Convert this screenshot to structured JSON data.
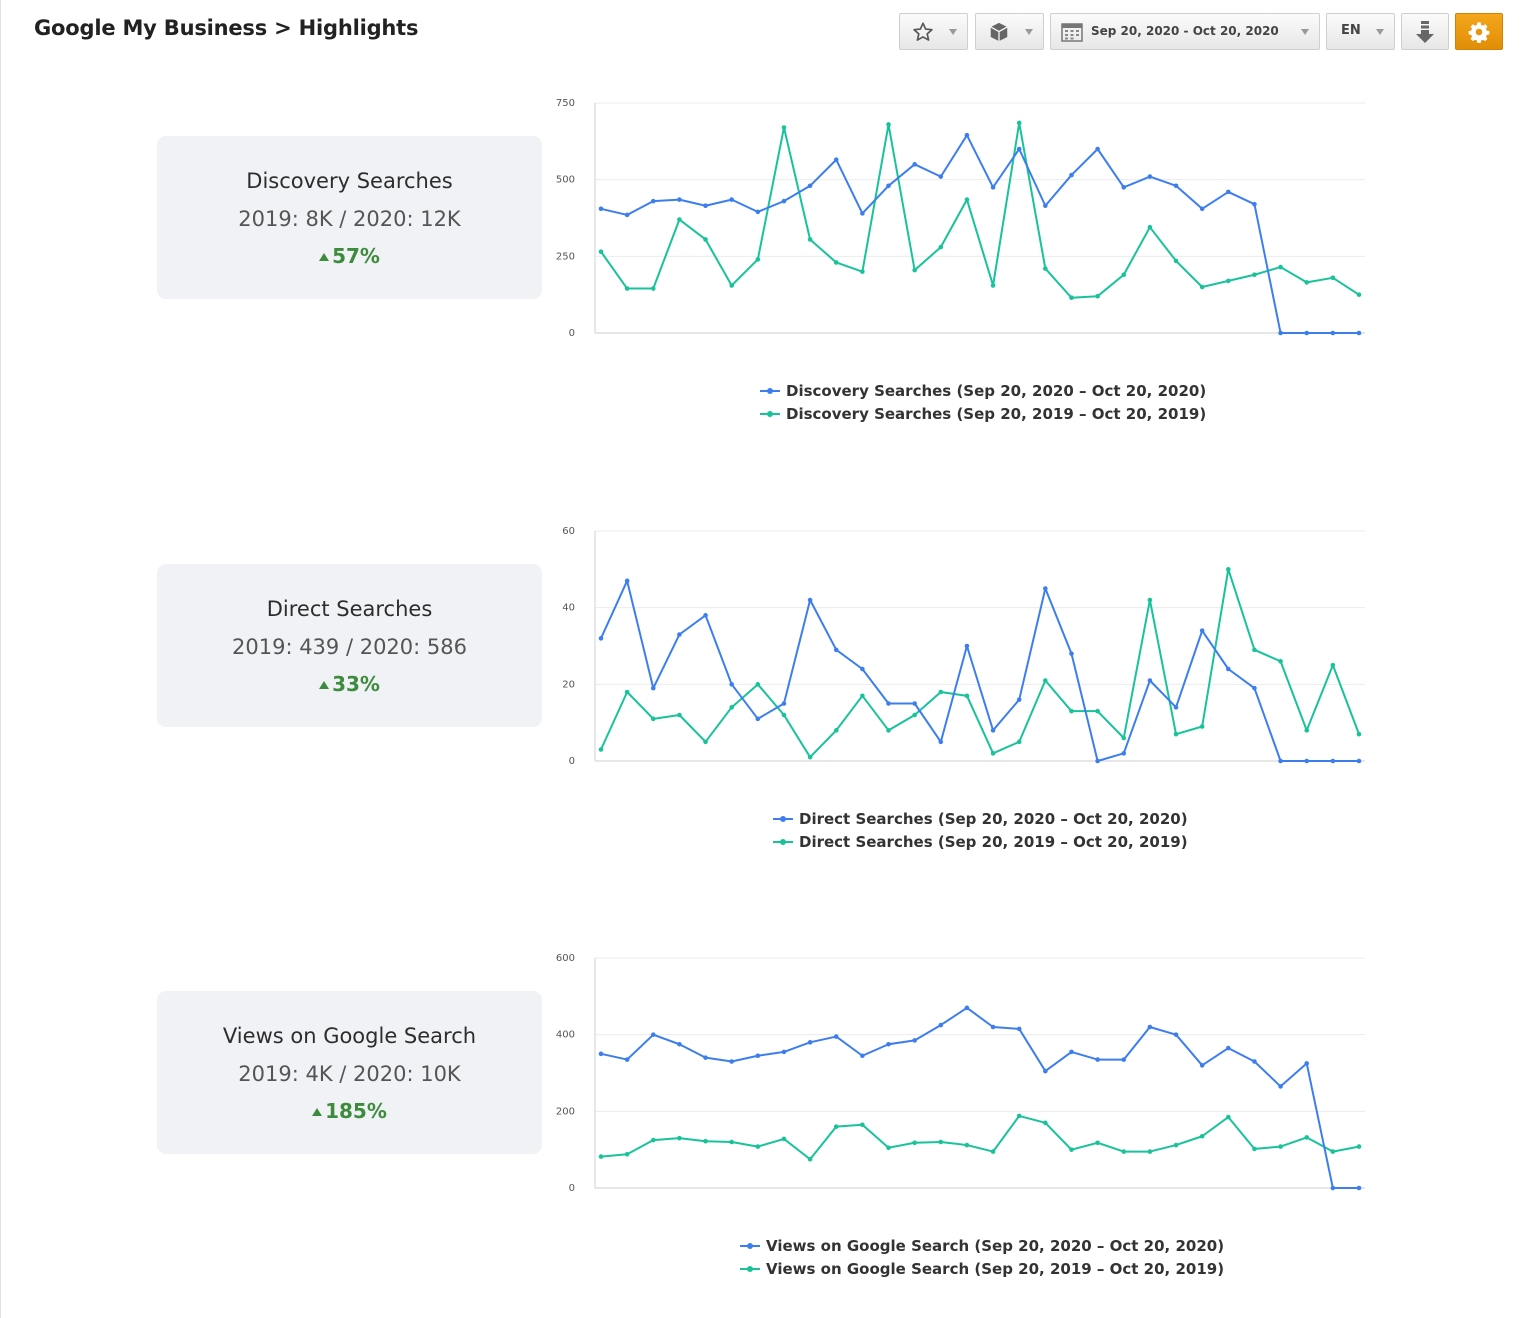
{
  "header": {
    "title": "Google My Business > Highlights"
  },
  "toolbar": {
    "date_range": "Sep 20, 2020 - Oct 20, 2020",
    "language": "EN",
    "icons": [
      "star-icon",
      "cube-icon",
      "calendar-icon",
      "download-icon",
      "gear-icon"
    ]
  },
  "colors": {
    "current": "#3d7eee",
    "previous": "#18c39a",
    "positive": "#3d8c3d"
  },
  "kpis": [
    {
      "title": "Discovery Searches",
      "values": "2019: 8K / 2020: 12K",
      "change": "57%"
    },
    {
      "title": "Direct Searches",
      "values": "2019: 439 / 2020: 586",
      "change": "33%"
    },
    {
      "title": "Views on Google Search",
      "values": "2019: 4K / 2020: 10K",
      "change": "185%"
    }
  ],
  "chart_data": [
    {
      "type": "line",
      "title": "",
      "xlabel": "",
      "ylabel": "",
      "ylim": [
        0,
        750
      ],
      "yticks": [
        0,
        250,
        500,
        750
      ],
      "yticks_labels": [
        "0",
        "250",
        "500",
        "750"
      ],
      "legend": [
        "Discovery Searches (Sep 20, 2020 – Oct 20, 2020)",
        "Discovery Searches (Sep 20, 2019 – Oct 20, 2019)"
      ],
      "series": [
        {
          "name": "Discovery Searches (Sep 20, 2020 – Oct 20, 2020)",
          "color": "#3d7eee",
          "values": [
            405,
            385,
            430,
            435,
            415,
            435,
            395,
            430,
            480,
            565,
            390,
            480,
            550,
            510,
            645,
            475,
            600,
            415,
            515,
            600,
            475,
            510,
            480,
            405,
            460,
            420,
            0,
            0,
            0,
            0
          ]
        },
        {
          "name": "Discovery Searches (Sep 20, 2019 – Oct 20, 2019)",
          "color": "#18c39a",
          "values": [
            265,
            145,
            145,
            370,
            305,
            155,
            240,
            670,
            305,
            230,
            200,
            680,
            205,
            280,
            435,
            155,
            685,
            210,
            115,
            120,
            190,
            345,
            235,
            150,
            170,
            190,
            215,
            165,
            180,
            125
          ]
        }
      ]
    },
    {
      "type": "line",
      "title": "",
      "xlabel": "",
      "ylabel": "",
      "ylim": [
        0,
        60
      ],
      "yticks": [
        0,
        20,
        40,
        60
      ],
      "yticks_labels": [
        "0",
        "20",
        "40",
        "60"
      ],
      "legend": [
        "Direct Searches (Sep 20, 2020 – Oct 20, 2020)",
        "Direct Searches (Sep 20, 2019 – Oct 20, 2019)"
      ],
      "series": [
        {
          "name": "Direct Searches (Sep 20, 2020 – Oct 20, 2020)",
          "color": "#3d7eee",
          "values": [
            32,
            47,
            19,
            33,
            38,
            20,
            11,
            15,
            42,
            29,
            24,
            15,
            15,
            5,
            30,
            8,
            16,
            45,
            28,
            0,
            2,
            21,
            14,
            34,
            24,
            19,
            0,
            0,
            0,
            0
          ]
        },
        {
          "name": "Direct Searches (Sep 20, 2019 – Oct 20, 2019)",
          "color": "#18c39a",
          "values": [
            3,
            18,
            11,
            12,
            5,
            14,
            20,
            12,
            1,
            8,
            17,
            8,
            12,
            18,
            17,
            2,
            5,
            21,
            13,
            13,
            6,
            42,
            7,
            9,
            50,
            29,
            26,
            8,
            25,
            7
          ]
        }
      ]
    },
    {
      "type": "line",
      "title": "",
      "xlabel": "",
      "ylabel": "",
      "ylim": [
        0,
        600
      ],
      "yticks": [
        0,
        200,
        400,
        600
      ],
      "yticks_labels": [
        "0",
        "200",
        "400",
        "600"
      ],
      "legend": [
        "Views on Google Search (Sep 20, 2020 – Oct 20, 2020)",
        "Views on Google Search (Sep 20, 2019 – Oct 20, 2019)"
      ],
      "series": [
        {
          "name": "Views on Google Search (Sep 20, 2020 – Oct 20, 2020)",
          "color": "#3d7eee",
          "values": [
            350,
            335,
            400,
            375,
            340,
            330,
            345,
            355,
            380,
            395,
            345,
            375,
            385,
            425,
            470,
            420,
            415,
            305,
            355,
            335,
            335,
            420,
            400,
            320,
            365,
            330,
            265,
            325,
            0,
            0
          ]
        },
        {
          "name": "Views on Google Search (Sep 20, 2019 – Oct 20, 2019)",
          "color": "#18c39a",
          "values": [
            82,
            88,
            125,
            130,
            122,
            120,
            108,
            128,
            75,
            160,
            165,
            105,
            118,
            120,
            112,
            95,
            188,
            170,
            100,
            118,
            95,
            95,
            112,
            135,
            185,
            102,
            108,
            132,
            95,
            108
          ]
        }
      ]
    }
  ]
}
